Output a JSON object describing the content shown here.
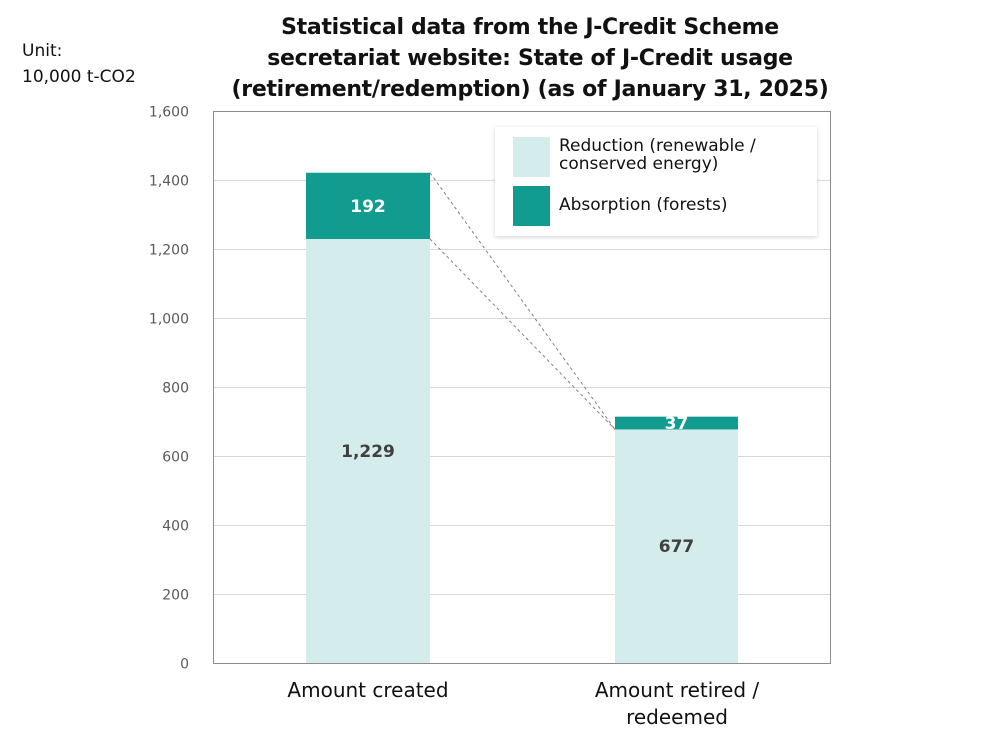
{
  "chart_data": {
    "type": "bar",
    "stacked": true,
    "title": "Statistical data from the J-Credit Scheme secretariat website: State of J-Credit usage (retirement/redemption) (as of January 31, 2025)",
    "title_lines": [
      "Statistical data from the J-Credit Scheme",
      "secretariat website: State of J-Credit usage",
      "(retirement/redemption) (as of January 31, 2025)"
    ],
    "unit_label": [
      "Unit:",
      "10,000 t-CO2"
    ],
    "categories": [
      "Amount created",
      "Amount retired / redeemed"
    ],
    "category_lines": [
      [
        "Amount created"
      ],
      [
        "Amount retired /",
        "redeemed"
      ]
    ],
    "series": [
      {
        "name": "Reduction (renewable / conserved energy)",
        "name_lines": [
          "Reduction (renewable /",
          "conserved energy)"
        ],
        "values": [
          1229,
          677
        ],
        "labels": [
          "1,229",
          "677"
        ],
        "color": "#d4ecec",
        "label_color": "#404040"
      },
      {
        "name": "Absorption (forests)",
        "name_lines": [
          "Absorption (forests)"
        ],
        "values": [
          192,
          37
        ],
        "labels": [
          "192",
          "37"
        ],
        "color": "#119c8f",
        "label_color": "#ffffff"
      }
    ],
    "ylim": [
      0,
      1600
    ],
    "yticks": [
      0,
      200,
      400,
      600,
      800,
      1000,
      1200,
      1400,
      1600
    ],
    "ytick_labels": [
      "0",
      "200",
      "400",
      "600",
      "800",
      "1,000",
      "1,200",
      "1,400",
      "1,600"
    ],
    "grid": true,
    "legend_position": "top-right",
    "connector_lines": "dashed"
  }
}
